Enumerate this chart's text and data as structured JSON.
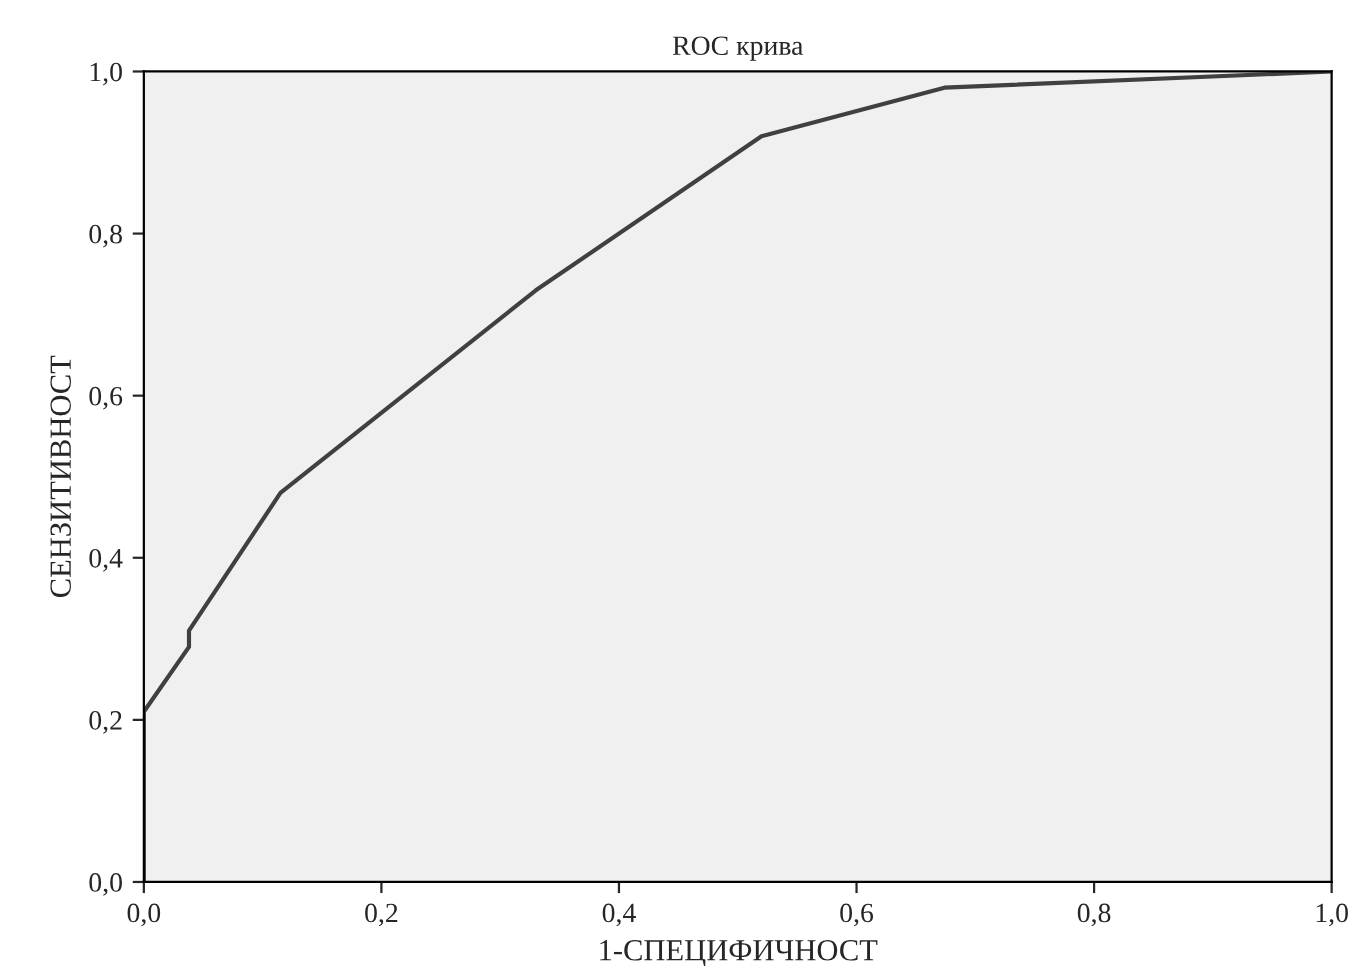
{
  "chart_data": {
    "type": "line",
    "title": "ROC крива",
    "xlabel": "1-СПЕЦИФИЧНОСТ",
    "ylabel": "СЕНЗИТИВНОСТ",
    "x": [
      0,
      0,
      0.038,
      0.038,
      0.115,
      0.33,
      0.52,
      0.674,
      1.0
    ],
    "series": [
      {
        "color": "#404040",
        "values": [
          0,
          0.21,
          0.29,
          0.31,
          0.48,
          0.73,
          0.92,
          0.98,
          1.0
        ]
      }
    ],
    "xlim": [
      0,
      1
    ],
    "ylim": [
      0,
      1
    ],
    "xticks": [
      {
        "value": 0,
        "label": "0,0"
      },
      {
        "value": 0.2,
        "label": "0,2"
      },
      {
        "value": 0.4,
        "label": "0,4"
      },
      {
        "value": 0.6,
        "label": "0,6"
      },
      {
        "value": 0.8,
        "label": "0,8"
      },
      {
        "value": 1.0,
        "label": "1,0"
      }
    ],
    "yticks": [
      {
        "value": 0,
        "label": "0,0"
      },
      {
        "value": 0.2,
        "label": "0,2"
      },
      {
        "value": 0.4,
        "label": "0,4"
      },
      {
        "value": 0.6,
        "label": "0,6"
      },
      {
        "value": 0.8,
        "label": "0,8"
      },
      {
        "value": 1.0,
        "label": "1,0"
      }
    ],
    "grid": false,
    "legend": false,
    "marker": "none",
    "line_style": "solid"
  }
}
